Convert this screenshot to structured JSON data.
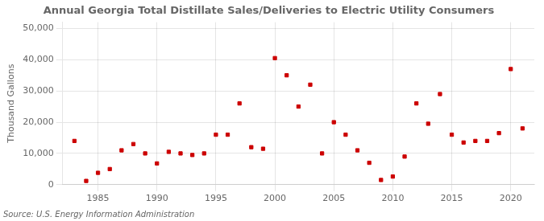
{
  "chart_data": {
    "type": "scatter",
    "title": "Annual Georgia Total Distillate Sales/Deliveries to Electric Utility Consumers",
    "ylabel": "Thousand Gallons",
    "source": "Source: U.S. Energy Information Administration",
    "x": [
      1983,
      1984,
      1985,
      1986,
      1987,
      1988,
      1989,
      1990,
      1991,
      1992,
      1993,
      1994,
      1995,
      1996,
      1997,
      1998,
      1999,
      2000,
      2001,
      2002,
      2003,
      2004,
      2005,
      2006,
      2007,
      2008,
      2009,
      2010,
      2011,
      2012,
      2013,
      2014,
      2015,
      2016,
      2017,
      2018,
      2019,
      2020,
      2021
    ],
    "values": [
      14000,
      1200,
      3800,
      5000,
      11000,
      13000,
      10000,
      6800,
      10500,
      10000,
      9500,
      10000,
      16000,
      16000,
      26000,
      12000,
      11500,
      40500,
      35000,
      25000,
      32000,
      10000,
      20000,
      16000,
      11000,
      7000,
      1500,
      2600,
      9000,
      26000,
      19500,
      29000,
      16000,
      13500,
      14000,
      14000,
      16500,
      37000,
      18000
    ],
    "color": "#cc0000",
    "marker": "square",
    "xlim": [
      1982,
      2022
    ],
    "xticks": [
      1985,
      1990,
      1995,
      2000,
      2005,
      2010,
      2015,
      2020
    ],
    "ylim": [
      0,
      52000
    ],
    "yticks": [
      0,
      {
        "value": 10000,
        "label": "10,000"
      },
      {
        "value": 20000,
        "label": "20,000"
      },
      {
        "value": 30000,
        "label": "30,000"
      },
      {
        "value": 40000,
        "label": "40,000"
      },
      {
        "value": 50000,
        "label": "50,000"
      }
    ],
    "grid": true
  }
}
